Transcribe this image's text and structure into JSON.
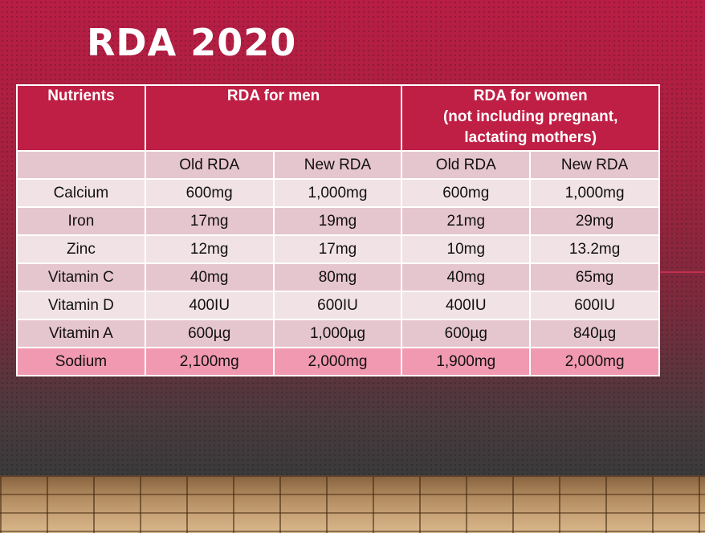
{
  "title": "RDA 2020",
  "table": {
    "headers": {
      "nutrients": "Nutrients",
      "men": "RDA for men",
      "women_line1": "RDA for women",
      "women_line2": "(not including pregnant,",
      "women_line3": "lactating mothers)"
    },
    "subheaders": [
      "",
      "Old RDA",
      "New RDA",
      "Old RDA",
      "New RDA"
    ],
    "rows": [
      {
        "nutrient": "Calcium",
        "men_old": "600mg",
        "men_new": "1,000mg",
        "women_old": "600mg",
        "women_new": "1,000mg"
      },
      {
        "nutrient": "Iron",
        "men_old": "17mg",
        "men_new": "19mg",
        "women_old": "21mg",
        "women_new": "29mg"
      },
      {
        "nutrient": "Zinc",
        "men_old": "12mg",
        "men_new": "17mg",
        "women_old": "10mg",
        "women_new": "13.2mg"
      },
      {
        "nutrient": "Vitamin C",
        "men_old": "40mg",
        "men_new": "80mg",
        "women_old": "40mg",
        "women_new": "65mg"
      },
      {
        "nutrient": "Vitamin D",
        "men_old": "400IU",
        "men_new": "600IU",
        "women_old": "400IU",
        "women_new": "600IU"
      },
      {
        "nutrient": "Vitamin A",
        "men_old": "600µg",
        "men_new": "1,000µg",
        "women_old": "600µg",
        "women_new": "840µg"
      },
      {
        "nutrient": "Sodium",
        "men_old": "2,100mg",
        "men_new": "2,000mg",
        "women_old": "1,900mg",
        "women_new": "2,000mg"
      }
    ]
  },
  "colors": {
    "header": "#c01f45",
    "row_light": "#f1e2e6",
    "row_mid": "#e6c6ce",
    "row_highlight": "#f199b1"
  }
}
